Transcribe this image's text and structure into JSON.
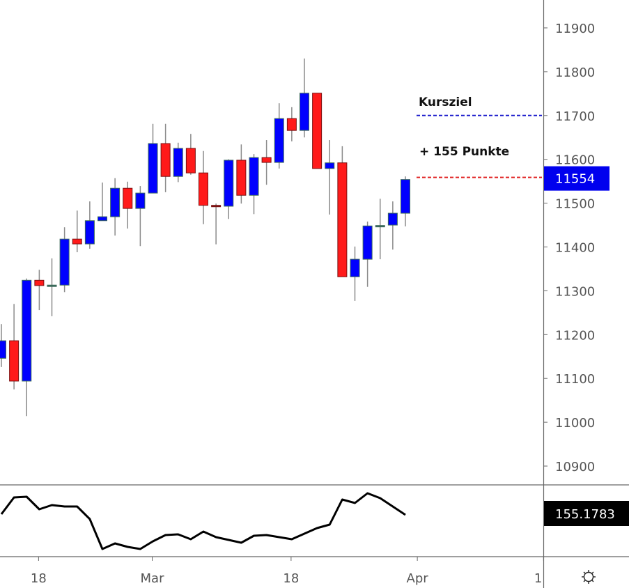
{
  "chart_data": {
    "type": "candlestick",
    "title": "",
    "price_axis": {
      "ylim": [
        10850,
        11950
      ],
      "ticks": [
        10900,
        11000,
        11100,
        11200,
        11300,
        11400,
        11500,
        11600,
        11700,
        11800,
        11900
      ]
    },
    "time_axis": {
      "ticks": [
        {
          "label": "18",
          "index": 3
        },
        {
          "label": "Mar",
          "index": 12
        },
        {
          "label": "18",
          "index": 23
        },
        {
          "label": "Apr",
          "index": 33
        },
        {
          "label": "1",
          "index": 43
        }
      ]
    },
    "candles": [
      [
        11146,
        11224,
        11126,
        11186
      ],
      [
        11186,
        11270,
        11075,
        11094
      ],
      [
        11094,
        11328,
        11014,
        11324
      ],
      [
        11324,
        11348,
        11256,
        11312
      ],
      [
        11313,
        11374,
        11242,
        11313
      ],
      [
        11313,
        11445,
        11297,
        11418
      ],
      [
        11418,
        11483,
        11388,
        11407
      ],
      [
        11407,
        11504,
        11396,
        11460
      ],
      [
        11460,
        11547,
        11460,
        11469
      ],
      [
        11469,
        11557,
        11426,
        11534
      ],
      [
        11534,
        11549,
        11442,
        11488
      ],
      [
        11488,
        11539,
        11402,
        11523
      ],
      [
        11523,
        11681,
        11523,
        11636
      ],
      [
        11636,
        11681,
        11525,
        11561
      ],
      [
        11561,
        11638,
        11548,
        11625
      ],
      [
        11625,
        11658,
        11565,
        11569
      ],
      [
        11569,
        11619,
        11452,
        11495
      ],
      [
        11495,
        11499,
        11406,
        11494
      ],
      [
        11493,
        11600,
        11464,
        11598
      ],
      [
        11598,
        11634,
        11499,
        11518
      ],
      [
        11518,
        11612,
        11475,
        11604
      ],
      [
        11604,
        11644,
        11542,
        11593
      ],
      [
        11593,
        11728,
        11579,
        11693
      ],
      [
        11693,
        11719,
        11641,
        11666
      ],
      [
        11666,
        11830,
        11650,
        11751
      ],
      [
        11751,
        11751,
        11579,
        11579
      ],
      [
        11579,
        11644,
        11474,
        11592
      ],
      [
        11592,
        11630,
        11332,
        11332
      ],
      [
        11332,
        11401,
        11277,
        11372
      ],
      [
        11372,
        11458,
        11309,
        11448
      ],
      [
        11448,
        11510,
        11372,
        11449
      ],
      [
        11450,
        11504,
        11394,
        11477
      ],
      [
        11477,
        11561,
        11447,
        11554
      ]
    ],
    "candle_fields": [
      "open",
      "high",
      "low",
      "close"
    ],
    "last_price": {
      "value": 11554,
      "label": "11554"
    },
    "target_line": {
      "value": 11700,
      "label": "Kursziel"
    },
    "current_line": {
      "value": 11554
    },
    "distance_annotation": "+ 155 Punkte",
    "indicator": {
      "values": [
        158,
        230,
        233,
        179,
        197,
        191,
        191,
        137,
        8,
        32,
        17,
        8,
        41,
        68,
        71,
        50,
        83,
        59,
        47,
        35,
        65,
        68,
        59,
        50,
        74,
        98,
        113,
        221,
        206,
        248,
        227,
        191,
        155.1783
      ],
      "ylim": [
        -22,
        281
      ],
      "last_label": "155.1783"
    },
    "colors": {
      "up": "#0000ff",
      "down": "#ff1a1a",
      "up_border": "#3b6a5a",
      "down_border": "#7a1010",
      "wick": "#8a8a8a",
      "target": "#1a1acc",
      "current": "#e02020",
      "label_bg": "#0000ee",
      "indicator_bg": "#000000"
    }
  },
  "settings_icon": "gear-icon"
}
